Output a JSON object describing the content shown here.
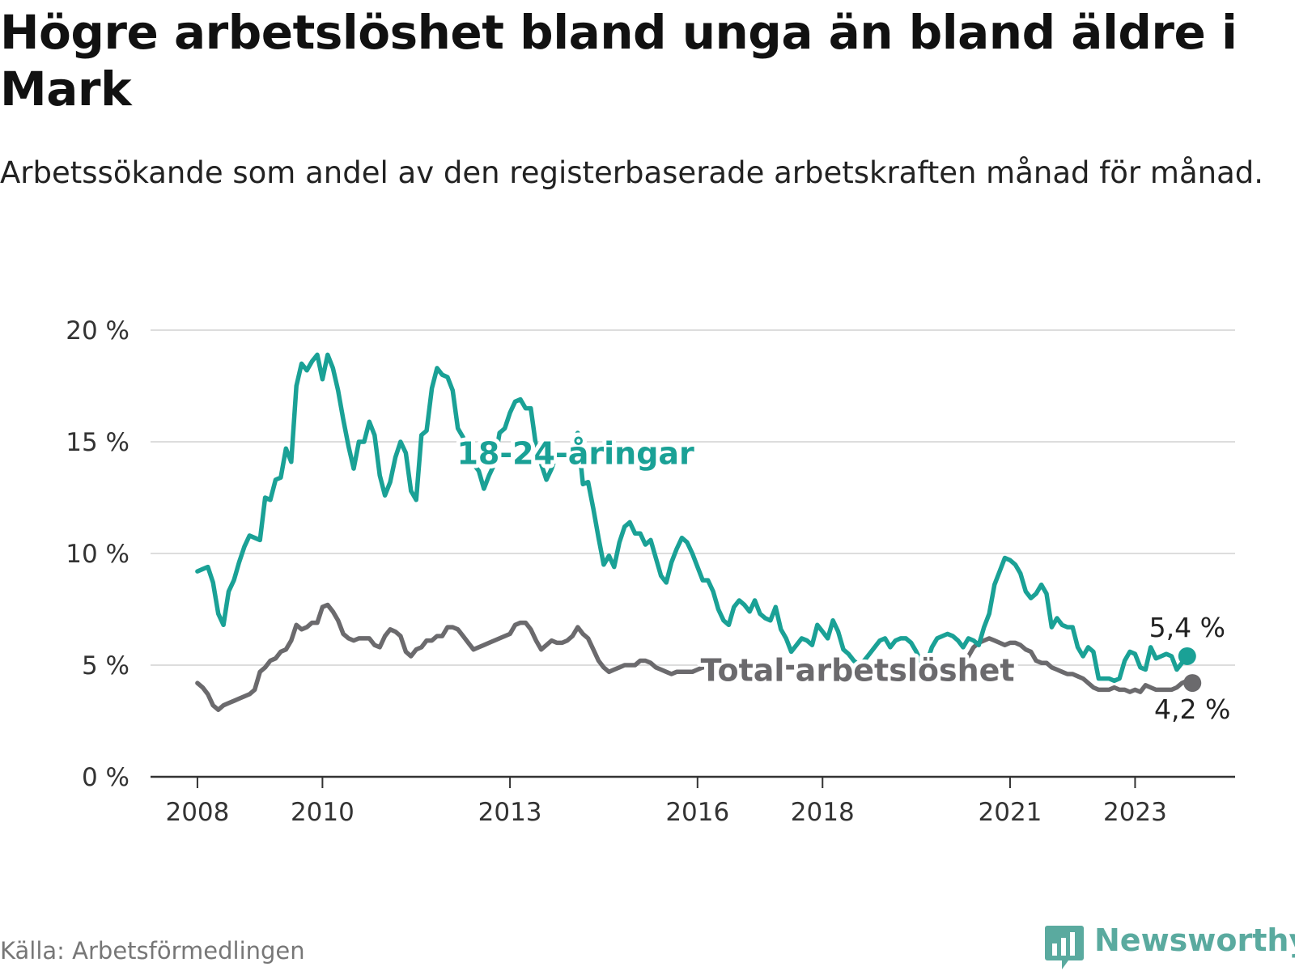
{
  "header": {
    "title": "Högre arbetslöshet bland unga än bland äldre i Mark",
    "subtitle": "Arbetssökande som andel av den registerbaserade arbetskraften månad för månad."
  },
  "footer": {
    "source": "Källa: Arbetsförmedlingen",
    "brand": "Newsworthy"
  },
  "colors": {
    "youth": "#1aa196",
    "total": "#6b6a6d",
    "grid": "#dddddd",
    "axis": "#333333",
    "tick_text": "#333333"
  },
  "chart_data": {
    "type": "line",
    "title": "Högre arbetslöshet bland unga än bland äldre i Mark",
    "xlabel": "",
    "ylabel": "",
    "x_start": 2008,
    "x_step_years": 0.0833333,
    "xlim": [
      2007.25,
      2024.6
    ],
    "ylim": [
      0,
      20
    ],
    "y_ticks": [
      0,
      5,
      10,
      15,
      20
    ],
    "y_tick_labels": [
      "0 %",
      "5 %",
      "10 %",
      "15 %",
      "20 %"
    ],
    "x_ticks": [
      2008,
      2010,
      2013,
      2016,
      2018,
      2021,
      2023
    ],
    "x_tick_labels": [
      "2008",
      "2010",
      "2013",
      "2016",
      "2018",
      "2021",
      "2023"
    ],
    "grid": true,
    "series": [
      {
        "name": "18-24-åringar",
        "label_year": 2012.15,
        "label_value": 14.0,
        "end_label": "5,4 %",
        "values": [
          9.2,
          9.3,
          9.4,
          8.7,
          7.3,
          6.8,
          8.3,
          8.8,
          9.6,
          10.3,
          10.8,
          10.7,
          10.6,
          12.5,
          12.4,
          13.3,
          13.4,
          14.7,
          14.1,
          17.5,
          18.5,
          18.2,
          18.6,
          18.9,
          17.8,
          18.9,
          18.3,
          17.3,
          16.0,
          14.8,
          13.8,
          15.0,
          15.0,
          15.9,
          15.3,
          13.5,
          12.6,
          13.2,
          14.3,
          15.0,
          14.5,
          12.8,
          12.4,
          15.3,
          15.5,
          17.4,
          18.3,
          18.0,
          17.9,
          17.3,
          15.6,
          15.2,
          14.6,
          14.0,
          13.7,
          12.9,
          13.5,
          14.0,
          15.4,
          15.6,
          16.3,
          16.8,
          16.9,
          16.5,
          16.5,
          14.8,
          14.0,
          13.3,
          13.8,
          14.5,
          14.5,
          14.2,
          14.7,
          15.4,
          13.1,
          13.2,
          12.0,
          10.7,
          9.5,
          9.9,
          9.4,
          10.5,
          11.2,
          11.4,
          10.9,
          10.9,
          10.4,
          10.6,
          9.8,
          9.0,
          8.7,
          9.6,
          10.2,
          10.7,
          10.5,
          10.0,
          9.4,
          8.8,
          8.8,
          8.3,
          7.5,
          7.0,
          6.8,
          7.6,
          7.9,
          7.7,
          7.4,
          7.9,
          7.3,
          7.1,
          7.0,
          7.6,
          6.6,
          6.2,
          5.6,
          5.9,
          6.2,
          6.1,
          5.9,
          6.8,
          6.5,
          6.2,
          7.0,
          6.5,
          5.7,
          5.5,
          5.2,
          5.0,
          5.2,
          5.5,
          5.8,
          6.1,
          6.2,
          5.8,
          6.1,
          6.2,
          6.2,
          6.0,
          5.6,
          5.1,
          5.1,
          5.8,
          6.2,
          6.3,
          6.4,
          6.3,
          6.1,
          5.8,
          6.2,
          6.1,
          5.9,
          6.7,
          7.3,
          8.6,
          9.2,
          9.8,
          9.7,
          9.5,
          9.1,
          8.3,
          8.0,
          8.2,
          8.6,
          8.2,
          6.7,
          7.1,
          6.8,
          6.7,
          6.7,
          5.8,
          5.4,
          5.8,
          5.6,
          4.4,
          4.4,
          4.4,
          4.3,
          4.4,
          5.2,
          5.6,
          5.5,
          4.9,
          4.8,
          5.8,
          5.3,
          5.4,
          5.5,
          5.4,
          4.8,
          5.1,
          5.4
        ],
        "color_key": "youth"
      },
      {
        "name": "Total arbetslöshet",
        "label_year": 2016.05,
        "label_value": 4.3,
        "end_label": "4,2 %",
        "values": [
          4.2,
          4.0,
          3.7,
          3.2,
          3.0,
          3.2,
          3.3,
          3.4,
          3.5,
          3.6,
          3.7,
          3.9,
          4.7,
          4.9,
          5.2,
          5.3,
          5.6,
          5.7,
          6.1,
          6.8,
          6.6,
          6.7,
          6.9,
          6.9,
          7.6,
          7.7,
          7.4,
          7.0,
          6.4,
          6.2,
          6.1,
          6.2,
          6.2,
          6.2,
          5.9,
          5.8,
          6.3,
          6.6,
          6.5,
          6.3,
          5.6,
          5.4,
          5.7,
          5.8,
          6.1,
          6.1,
          6.3,
          6.3,
          6.7,
          6.7,
          6.6,
          6.3,
          6.0,
          5.7,
          5.8,
          5.9,
          6.0,
          6.1,
          6.2,
          6.3,
          6.4,
          6.8,
          6.9,
          6.9,
          6.6,
          6.1,
          5.7,
          5.9,
          6.1,
          6.0,
          6.0,
          6.1,
          6.3,
          6.7,
          6.4,
          6.2,
          5.7,
          5.2,
          4.9,
          4.7,
          4.8,
          4.9,
          5.0,
          5.0,
          5.0,
          5.2,
          5.2,
          5.1,
          4.9,
          4.8,
          4.7,
          4.6,
          4.7,
          4.7,
          4.7,
          4.7,
          4.8,
          4.9,
          4.9,
          4.9,
          4.9,
          4.9,
          4.9,
          4.9,
          4.9,
          4.9,
          4.9,
          4.9,
          4.9,
          4.9,
          4.9,
          4.9,
          4.9,
          4.9,
          4.9,
          4.9,
          4.9,
          4.9,
          4.9,
          4.9,
          4.9,
          4.9,
          4.9,
          4.9,
          4.9,
          4.9,
          4.9,
          4.9,
          4.9,
          4.9,
          4.9,
          4.9,
          4.9,
          4.9,
          4.9,
          4.9,
          4.9,
          4.9,
          4.9,
          4.9,
          4.9,
          4.9,
          4.9,
          4.9,
          4.9,
          4.9,
          4.9,
          5.2,
          5.4,
          5.8,
          6.0,
          6.1,
          6.2,
          6.1,
          6.0,
          5.9,
          6.0,
          6.0,
          5.9,
          5.7,
          5.6,
          5.2,
          5.1,
          5.1,
          4.9,
          4.8,
          4.7,
          4.6,
          4.6,
          4.5,
          4.4,
          4.2,
          4.0,
          3.9,
          3.9,
          3.9,
          4.0,
          3.9,
          3.9,
          3.8,
          3.9,
          3.8,
          4.1,
          4.0,
          3.9,
          3.9,
          3.9,
          3.9,
          4.0,
          4.2,
          4.3,
          4.2
        ],
        "color_key": "total"
      }
    ]
  }
}
